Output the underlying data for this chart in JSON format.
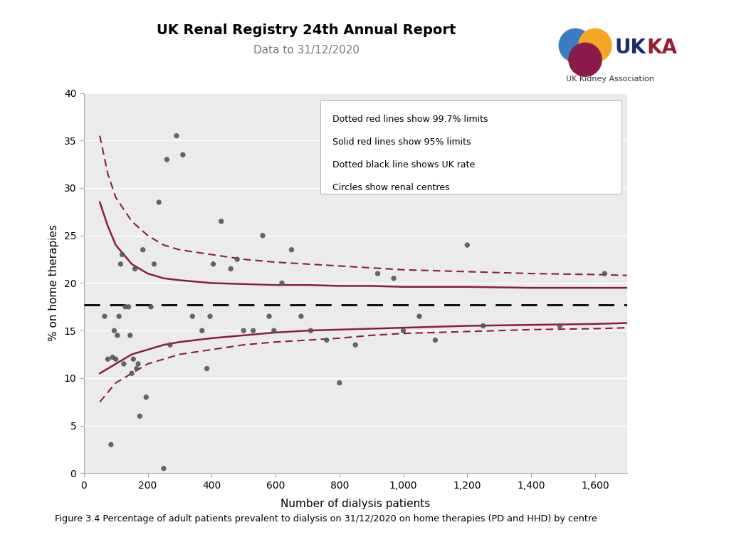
{
  "title": "UK Renal Registry 24th Annual Report",
  "subtitle": "Data to 31/12/2020",
  "xlabel": "Number of dialysis patients",
  "ylabel": "% on home therapies",
  "caption": "Figure 3.4 Percentage of adult patients prevalent to dialysis on 31/12/2020 on home therapies (PD and HHD) by centre",
  "uk_rate": 17.7,
  "xlim": [
    0,
    1700
  ],
  "ylim": [
    0,
    40
  ],
  "xticks": [
    0,
    200,
    400,
    600,
    800,
    1000,
    1200,
    1400,
    1600
  ],
  "yticks": [
    0,
    5,
    10,
    15,
    20,
    25,
    30,
    35,
    40
  ],
  "scatter_x": [
    65,
    75,
    85,
    90,
    95,
    100,
    105,
    110,
    115,
    120,
    125,
    130,
    140,
    145,
    150,
    155,
    160,
    165,
    170,
    175,
    185,
    195,
    210,
    220,
    235,
    250,
    260,
    270,
    290,
    310,
    340,
    370,
    385,
    395,
    405,
    430,
    460,
    480,
    500,
    530,
    560,
    580,
    595,
    620,
    650,
    680,
    710,
    760,
    800,
    850,
    920,
    970,
    1000,
    1050,
    1100,
    1200,
    1250,
    1490,
    1630
  ],
  "scatter_y": [
    16.5,
    12.0,
    3.0,
    12.2,
    15.0,
    12.0,
    14.5,
    16.5,
    22.0,
    23.0,
    11.5,
    17.5,
    17.5,
    14.5,
    10.5,
    12.0,
    21.5,
    11.0,
    11.5,
    6.0,
    23.5,
    8.0,
    17.5,
    22.0,
    28.5,
    0.5,
    33.0,
    13.5,
    35.5,
    33.5,
    16.5,
    15.0,
    11.0,
    16.5,
    22.0,
    26.5,
    21.5,
    22.5,
    15.0,
    15.0,
    25.0,
    16.5,
    15.0,
    20.0,
    23.5,
    16.5,
    15.0,
    14.0,
    9.5,
    13.5,
    21.0,
    20.5,
    15.0,
    16.5,
    14.0,
    24.0,
    15.5,
    15.5,
    21.0
  ],
  "scatter_color": "#555555",
  "line_color": "#8B1A4A",
  "dashed_black_color": "#000000",
  "bg_color": "#EBEBEB",
  "legend_text": [
    "Dotted red lines show 99.7% limits",
    "Solid red lines show 95% limits",
    "Dotted black line shows UK rate",
    "Circles show renal centres"
  ],
  "curve_x": [
    50,
    75,
    100,
    150,
    200,
    250,
    300,
    400,
    500,
    600,
    700,
    800,
    900,
    1000,
    1100,
    1200,
    1400,
    1600,
    1700
  ],
  "upper_99_y": [
    35.5,
    31.5,
    29.0,
    26.5,
    25.0,
    24.0,
    23.5,
    23.0,
    22.5,
    22.2,
    22.0,
    21.8,
    21.6,
    21.4,
    21.3,
    21.2,
    21.0,
    20.9,
    20.8
  ],
  "lower_99_y": [
    7.5,
    8.5,
    9.5,
    10.5,
    11.5,
    12.0,
    12.5,
    13.0,
    13.5,
    13.8,
    14.0,
    14.2,
    14.5,
    14.7,
    14.8,
    14.9,
    15.1,
    15.2,
    15.3
  ],
  "upper_95_y": [
    28.5,
    26.0,
    24.0,
    22.0,
    21.0,
    20.5,
    20.3,
    20.0,
    19.9,
    19.8,
    19.8,
    19.7,
    19.7,
    19.6,
    19.6,
    19.6,
    19.5,
    19.5,
    19.5
  ],
  "lower_95_y": [
    10.5,
    11.0,
    11.5,
    12.5,
    13.0,
    13.5,
    13.8,
    14.2,
    14.5,
    14.8,
    15.0,
    15.1,
    15.2,
    15.3,
    15.4,
    15.5,
    15.6,
    15.7,
    15.8
  ],
  "logo_blue": "#3B7DC4",
  "logo_orange": "#F5A623",
  "logo_maroon": "#8B1A4A",
  "ukka_navy": "#1B2B6B",
  "ukka_red": "#9B1B30"
}
